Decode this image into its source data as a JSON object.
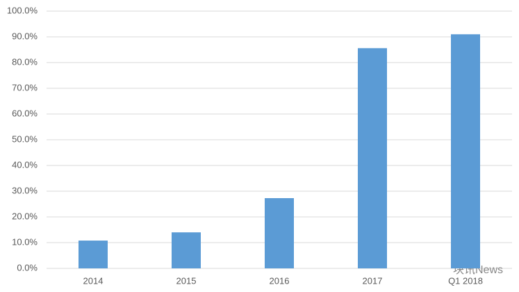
{
  "chart_data": {
    "type": "bar",
    "categories": [
      "2014",
      "2015",
      "2016",
      "2017",
      "Q1 2018"
    ],
    "values": [
      10.8,
      14.0,
      27.3,
      85.6,
      91.0
    ],
    "color": "#5b9bd5",
    "ylim": [
      0,
      100
    ],
    "yticks": [
      {
        "value": 0,
        "label": "0.0%"
      },
      {
        "value": 10,
        "label": "10.0%"
      },
      {
        "value": 20,
        "label": "20.0%"
      },
      {
        "value": 30,
        "label": "30.0%"
      },
      {
        "value": 40,
        "label": "40.0%"
      },
      {
        "value": 50,
        "label": "50.0%"
      },
      {
        "value": 60,
        "label": "60.0%"
      },
      {
        "value": 70,
        "label": "70.0%"
      },
      {
        "value": 80,
        "label": "80.0%"
      },
      {
        "value": 90,
        "label": "90.0%"
      },
      {
        "value": 100,
        "label": "100.0%"
      }
    ],
    "grid": true,
    "watermark": "块讯News"
  }
}
